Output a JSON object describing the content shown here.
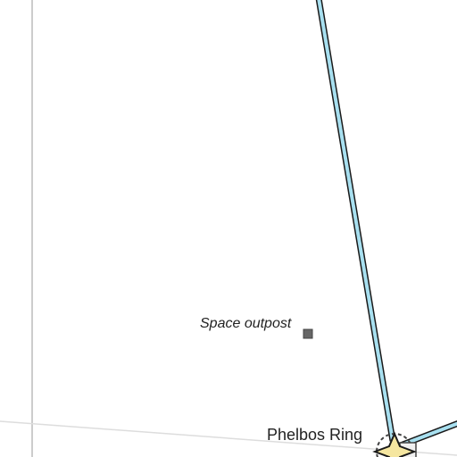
{
  "map": {
    "colors": {
      "background": "#ffffff",
      "route_fill": "#a8e0f0",
      "route_outline": "#1a1a1a",
      "boundary": "#cccccc",
      "outpost_marker": "#666666",
      "star_fill": "#f5e6a0"
    },
    "places": [
      {
        "name": "Space outpost",
        "kind": "outpost",
        "marker": "square-icon"
      },
      {
        "name": "Phelbos Ring",
        "kind": "station",
        "marker": "star-icon"
      }
    ]
  }
}
